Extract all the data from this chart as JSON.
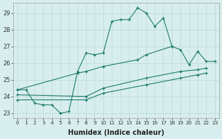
{
  "xlabel": "Humidex (Indice chaleur)",
  "bg_color": "#d8eeee",
  "grid_color": "#b8d8d8",
  "line_color": "#1a7a6a",
  "xlim": [
    -0.5,
    23.5
  ],
  "ylim": [
    22.7,
    29.6
  ],
  "yticks": [
    23,
    24,
    25,
    26,
    27,
    28,
    29
  ],
  "series": [
    {
      "x": [
        0,
        1,
        2,
        3,
        4,
        5,
        6,
        7,
        8,
        9,
        10,
        11,
        12,
        13,
        14,
        15,
        16,
        17,
        18
      ],
      "y": [
        24.4,
        24.4,
        23.6,
        23.5,
        23.5,
        23.0,
        23.1,
        25.5,
        26.6,
        26.5,
        26.6,
        28.5,
        28.6,
        28.6,
        29.3,
        29.0,
        28.2,
        28.7,
        27.0
      ]
    },
    {
      "x": [
        0,
        7,
        8,
        10,
        14,
        15,
        18,
        19,
        20,
        21,
        22,
        23
      ],
      "y": [
        24.4,
        25.4,
        25.5,
        25.8,
        26.2,
        26.5,
        27.0,
        26.8,
        25.9,
        26.7,
        26.1,
        26.1
      ]
    },
    {
      "x": [
        0,
        8,
        10,
        15,
        19,
        21,
        22
      ],
      "y": [
        24.1,
        24.0,
        24.5,
        25.1,
        25.5,
        25.6,
        25.7
      ]
    },
    {
      "x": [
        0,
        8,
        10,
        15,
        19,
        21,
        22
      ],
      "y": [
        23.8,
        23.8,
        24.2,
        24.7,
        25.1,
        25.3,
        25.4
      ]
    }
  ]
}
